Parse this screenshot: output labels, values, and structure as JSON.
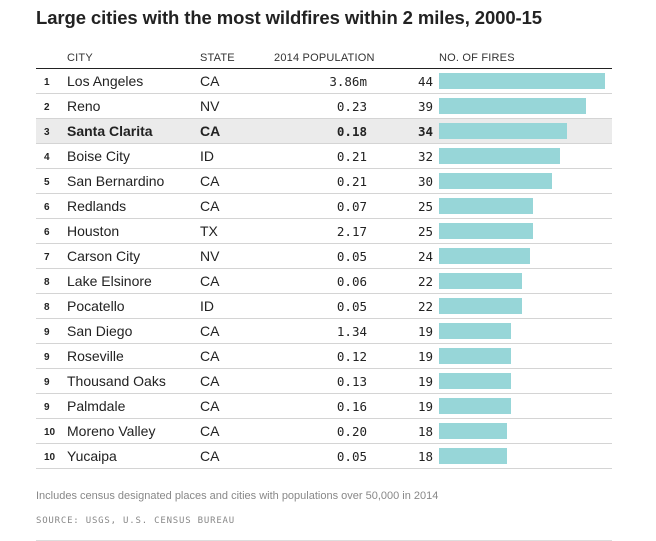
{
  "title": "Large cities with the most wildfires within 2 miles, 2000-15",
  "headers": {
    "city": "CITY",
    "state": "STATE",
    "population": "2014 POPULATION",
    "fires": "NO. OF FIRES"
  },
  "chart_data": {
    "type": "table",
    "bar_color": "#97d6d8",
    "highlight_row": 2,
    "max_fires": 44,
    "rows": [
      {
        "rank": "1",
        "city": "Los Angeles",
        "state": "CA",
        "population": "3.86m",
        "fires": "44",
        "value": 44
      },
      {
        "rank": "2",
        "city": "Reno",
        "state": "NV",
        "population": "0.23",
        "fires": "39",
        "value": 39
      },
      {
        "rank": "3",
        "city": "Santa Clarita",
        "state": "CA",
        "population": "0.18",
        "fires": "34",
        "value": 34
      },
      {
        "rank": "4",
        "city": "Boise City",
        "state": "ID",
        "population": "0.21",
        "fires": "32",
        "value": 32
      },
      {
        "rank": "5",
        "city": "San Bernardino",
        "state": "CA",
        "population": "0.21",
        "fires": "30",
        "value": 30
      },
      {
        "rank": "6",
        "city": "Redlands",
        "state": "CA",
        "population": "0.07",
        "fires": "25",
        "value": 25
      },
      {
        "rank": "6",
        "city": "Houston",
        "state": "TX",
        "population": "2.17",
        "fires": "25",
        "value": 25
      },
      {
        "rank": "7",
        "city": "Carson City",
        "state": "NV",
        "population": "0.05",
        "fires": "24",
        "value": 24
      },
      {
        "rank": "8",
        "city": "Lake Elsinore",
        "state": "CA",
        "population": "0.06",
        "fires": "22",
        "value": 22
      },
      {
        "rank": "8",
        "city": "Pocatello",
        "state": "ID",
        "population": "0.05",
        "fires": "22",
        "value": 22
      },
      {
        "rank": "9",
        "city": "San Diego",
        "state": "CA",
        "population": "1.34",
        "fires": "19",
        "value": 19
      },
      {
        "rank": "9",
        "city": "Roseville",
        "state": "CA",
        "population": "0.12",
        "fires": "19",
        "value": 19
      },
      {
        "rank": "9",
        "city": "Thousand Oaks",
        "state": "CA",
        "population": "0.13",
        "fires": "19",
        "value": 19
      },
      {
        "rank": "9",
        "city": "Palmdale",
        "state": "CA",
        "population": "0.16",
        "fires": "19",
        "value": 19
      },
      {
        "rank": "10",
        "city": "Moreno Valley",
        "state": "CA",
        "population": "0.20",
        "fires": "18",
        "value": 18
      },
      {
        "rank": "10",
        "city": "Yucaipa",
        "state": "CA",
        "population": "0.05",
        "fires": "18",
        "value": 18
      }
    ]
  },
  "note": "Includes census designated places and cities with populations over 50,000 in 2014",
  "source": "SOURCE: USGS, U.S. CENSUS BUREAU"
}
